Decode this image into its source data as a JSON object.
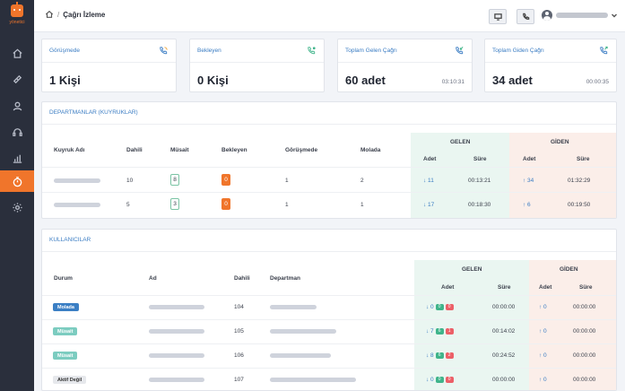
{
  "app": {
    "logo_text": "yönetici"
  },
  "sidebar": {
    "items": [
      "home-icon",
      "ticket-icon",
      "user-icon",
      "headset-icon",
      "chart-icon",
      "timer-icon",
      "settings-icon"
    ],
    "active": "timer-icon"
  },
  "breadcrumb": {
    "title": "Çağrı İzleme"
  },
  "stats": [
    {
      "title": "Görüşmede",
      "value": "1 Kişi",
      "time": "",
      "icon_color": "#3a7cc3"
    },
    {
      "title": "Bekleyen",
      "value": "0 Kişi",
      "time": "",
      "icon_color": "#3fb48a"
    },
    {
      "title": "Toplam Gelen Çağrı",
      "value": "60 adet",
      "time": "03:10:31",
      "icon_color": "#3a7cc3"
    },
    {
      "title": "Toplam Giden Çağrı",
      "value": "34 adet",
      "time": "00:00:35",
      "icon_color": "#3a7cc3"
    }
  ],
  "departments": {
    "title": "DEPARTMANLAR (KUYRUKLAR)",
    "headers": {
      "name": "Kuyruk Adı",
      "ext": "Dahili",
      "available": "Müsait",
      "waiting": "Bekleyen",
      "talking": "Görüşmede",
      "break": "Molada",
      "incoming": "GELEN",
      "outgoing": "GİDEN",
      "count": "Adet",
      "duration": "Süre"
    },
    "rows": [
      {
        "ext": "10",
        "available": "8",
        "waiting": "0",
        "talking": "1",
        "break": "2",
        "in_count": "↓ 11",
        "in_dur": "00:13:21",
        "out_count": "↑ 34",
        "out_dur": "01:32:29"
      },
      {
        "ext": "5",
        "available": "3",
        "waiting": "0",
        "talking": "1",
        "break": "1",
        "in_count": "↓ 17",
        "in_dur": "00:18:30",
        "out_count": "↑ 6",
        "out_dur": "00:19:50"
      }
    ]
  },
  "users": {
    "title": "KULLANICILAR",
    "headers": {
      "status": "Durum",
      "name": "Ad",
      "ext": "Dahili",
      "dept": "Departman",
      "incoming": "GELEN",
      "outgoing": "GİDEN",
      "count": "Adet",
      "duration": "Süre"
    },
    "rows": [
      {
        "status": "Molada",
        "status_style": "blue",
        "ext": "104",
        "in_count": "↓ 0",
        "g": "0",
        "r": "0",
        "in_dur": "00:00:00",
        "out_count": "↑ 0",
        "out_dur": "00:00:00"
      },
      {
        "status": "Müsait",
        "status_style": "teal",
        "ext": "105",
        "in_count": "↓ 7",
        "g": "6",
        "r": "1",
        "in_dur": "00:14:02",
        "out_count": "↑ 0",
        "out_dur": "00:00:00"
      },
      {
        "status": "Müsait",
        "status_style": "teal",
        "ext": "106",
        "in_count": "↓ 8",
        "g": "6",
        "r": "2",
        "in_dur": "00:24:52",
        "out_count": "↑ 0",
        "out_dur": "00:00:00"
      },
      {
        "status": "Aktif Değil",
        "status_style": "gray",
        "ext": "107",
        "in_count": "↓ 0",
        "g": "0",
        "r": "0",
        "in_dur": "00:00:00",
        "out_count": "↑ 0",
        "out_dur": "00:00:00"
      }
    ]
  }
}
